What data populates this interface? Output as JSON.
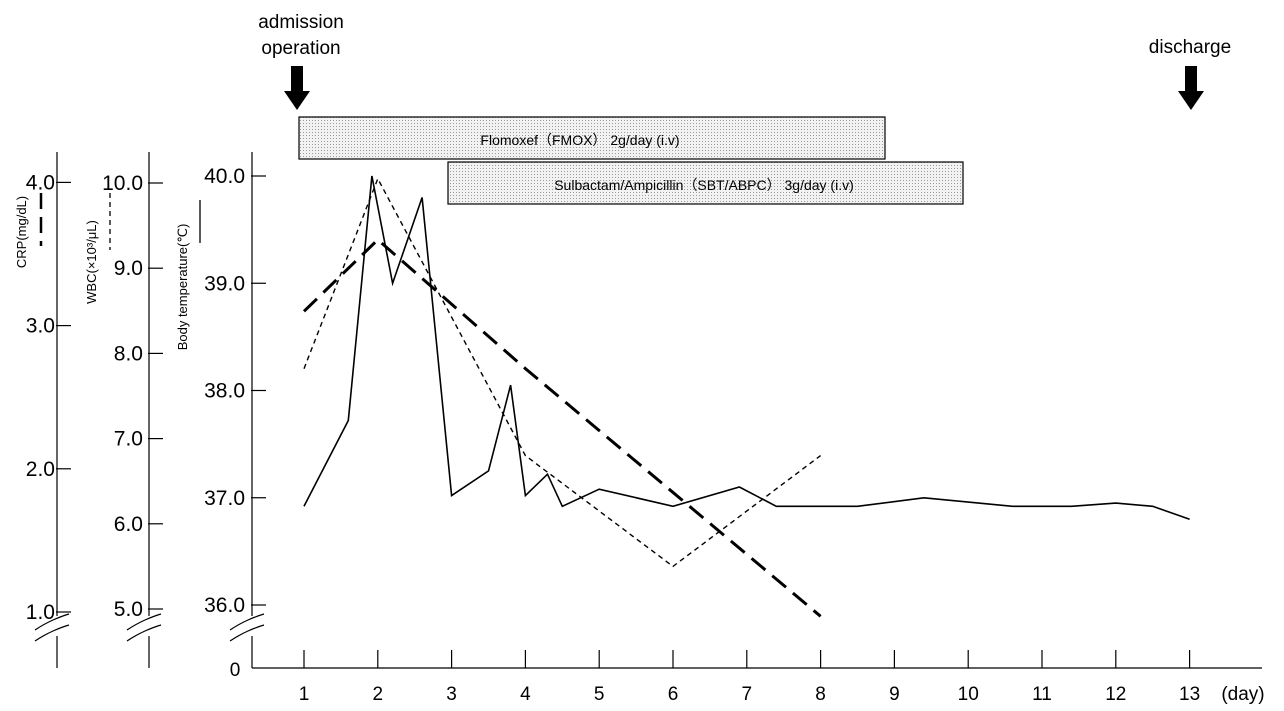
{
  "events": {
    "admission": "admission",
    "operation": "operation",
    "discharge": "discharge"
  },
  "treatments": [
    {
      "label": "Flomoxef（FMOX） 2g/day (i.v)"
    },
    {
      "label": "Sulbactam/Ampicillin（SBT/ABPC） 3g/day (i.v)"
    }
  ],
  "axes": {
    "crp": {
      "label": "CRP(mg/dL)",
      "ticks": [
        "1.0",
        "2.0",
        "3.0",
        "4.0"
      ]
    },
    "wbc": {
      "label": "WBC(×10³/μL)",
      "ticks": [
        "5.0",
        "6.0",
        "7.0",
        "8.0",
        "9.0",
        "10.0"
      ]
    },
    "temp": {
      "label": "Body temperature(℃)",
      "ticks": [
        "36.0",
        "37.0",
        "38.0",
        "39.0",
        "40.0"
      ]
    },
    "x_ticks": [
      "1",
      "2",
      "3",
      "4",
      "5",
      "6",
      "7",
      "8",
      "9",
      "10",
      "11",
      "12",
      "13"
    ],
    "x_unit": "(day)",
    "zero": "0"
  },
  "chart_data": {
    "type": "line",
    "x_unit": "day",
    "xlim": [
      0.5,
      13.8
    ],
    "series": [
      {
        "name": "Body temperature(℃)",
        "axis": "temp",
        "style": "solid",
        "ylim": [
          36.0,
          40.0
        ],
        "points": [
          [
            1,
            36.92
          ],
          [
            1.6,
            37.72
          ],
          [
            1.92,
            40.0
          ],
          [
            2.2,
            39.0
          ],
          [
            2.6,
            39.8
          ],
          [
            3.0,
            37.02
          ],
          [
            3.5,
            37.25
          ],
          [
            3.8,
            38.05
          ],
          [
            4.0,
            37.02
          ],
          [
            4.3,
            37.22
          ],
          [
            4.5,
            36.92
          ],
          [
            5.0,
            37.08
          ],
          [
            6.0,
            36.92
          ],
          [
            6.9,
            37.1
          ],
          [
            7.4,
            36.92
          ],
          [
            8.5,
            36.92
          ],
          [
            9.4,
            37.0
          ],
          [
            10.6,
            36.92
          ],
          [
            11.4,
            36.92
          ],
          [
            12.0,
            36.95
          ],
          [
            12.5,
            36.92
          ],
          [
            13.0,
            36.8
          ]
        ]
      },
      {
        "name": "WBC(×10³/μL)",
        "axis": "wbc",
        "style": "short-dash",
        "ylim": [
          5.0,
          10.0
        ],
        "points": [
          [
            1,
            7.82
          ],
          [
            2,
            10.05
          ],
          [
            4,
            6.8
          ],
          [
            6,
            5.5
          ],
          [
            8,
            6.8
          ]
        ]
      },
      {
        "name": "CRP(mg/dL)",
        "axis": "crp",
        "style": "long-dash",
        "ylim": [
          1.0,
          4.0
        ],
        "points": [
          [
            1,
            3.1
          ],
          [
            2,
            3.6
          ],
          [
            4,
            2.7
          ],
          [
            8,
            0.97
          ]
        ]
      }
    ]
  },
  "colors": {
    "ink": "#000000",
    "box_fill": "#ececec",
    "box_border": "#000000"
  }
}
